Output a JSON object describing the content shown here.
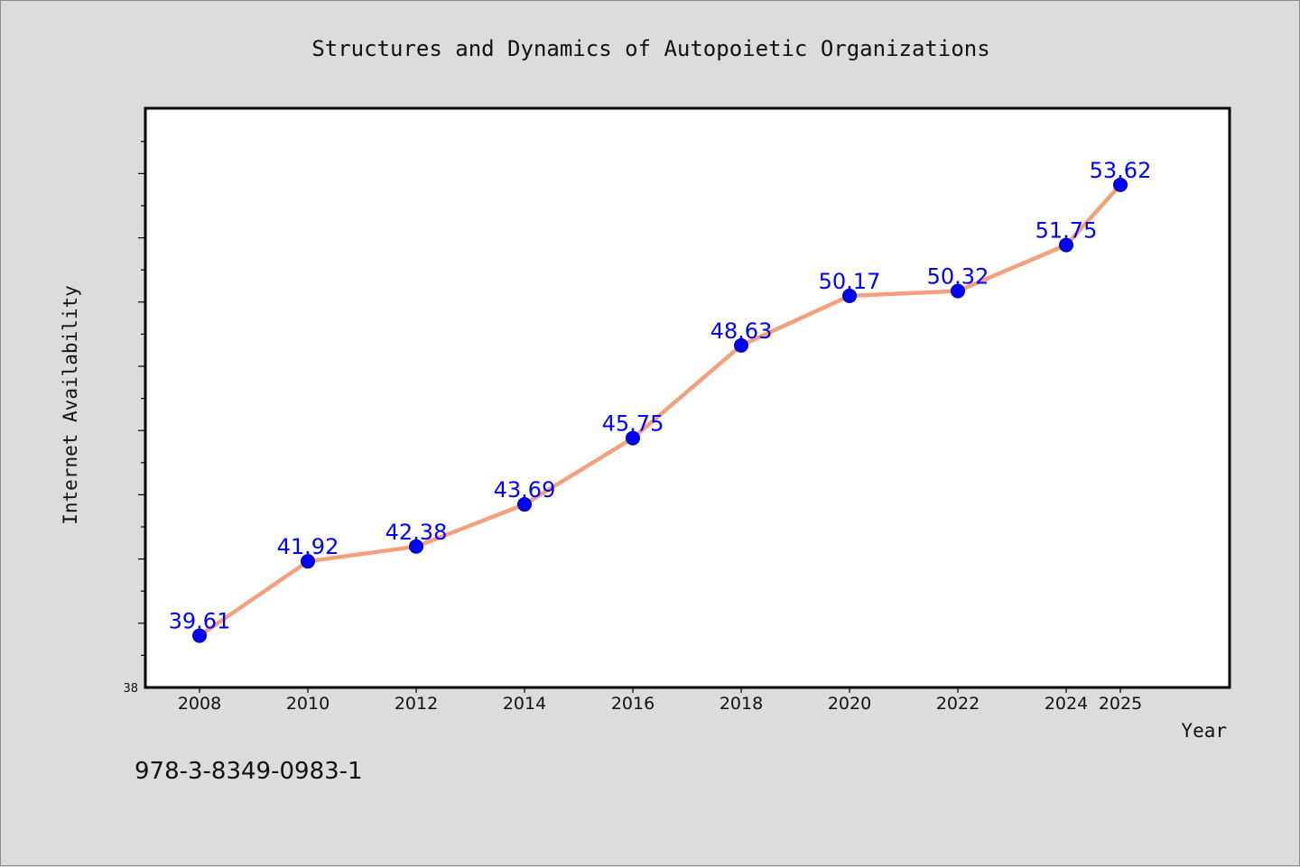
{
  "footer": {
    "isbn": "978-3-8349-0983-1"
  },
  "chart_data": {
    "type": "line",
    "title": "Structures and Dynamics of Autopoietic Organizations",
    "xlabel": "Year",
    "ylabel": "Internet Availability",
    "categories": [
      "2008",
      "2010",
      "2012",
      "2014",
      "2016",
      "2018",
      "2020",
      "2022",
      "2024",
      "2025"
    ],
    "series": [
      {
        "values": [
          39.61,
          41.92,
          42.38,
          43.69,
          45.75,
          48.63,
          50.17,
          50.32,
          51.75,
          53.62
        ]
      }
    ],
    "ylim": [
      38,
      56
    ],
    "ytick_labels": [
      "38"
    ],
    "grid": false,
    "colors": {
      "line": "#f4a07c",
      "marker": "#0000ff",
      "data_label": "#0000ff",
      "frame": "#000000",
      "plot_background": "#ffffff",
      "page_background": "#dcdcdc"
    }
  }
}
